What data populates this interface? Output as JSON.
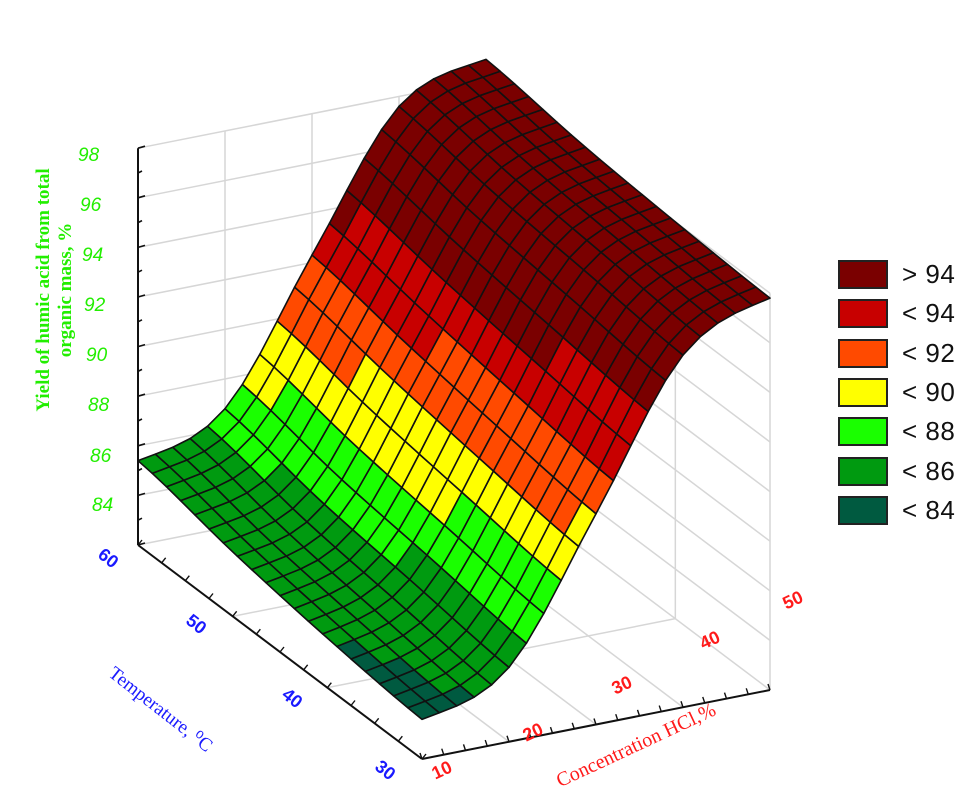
{
  "chart_data": {
    "type": "surface3d",
    "title": "",
    "x_axis": {
      "label": "Concentration HCl,%",
      "ticks": [
        10,
        20,
        30,
        40,
        50
      ],
      "range": [
        10,
        50
      ],
      "color": "#ff1a1a"
    },
    "y_axis": {
      "label": "Temperature, 0 C",
      "ticks": [
        30,
        40,
        50,
        60
      ],
      "range": [
        30,
        60
      ],
      "color": "#1a1aff"
    },
    "z_axis": {
      "label": "Yield of humic acid from total organic mass, %",
      "ticks": [
        84,
        86,
        88,
        90,
        92,
        94,
        96,
        98
      ],
      "range": [
        82,
        98
      ],
      "color": "#22ee00"
    },
    "grid_hcl": [
      10,
      20,
      30,
      40,
      50
    ],
    "grid_temp": [
      30,
      40,
      50,
      60
    ],
    "z_values_rows_by_temp": [
      [
        83.6,
        85.0,
        90.5,
        96.2,
        97.8
      ],
      [
        84.0,
        85.5,
        91.0,
        96.6,
        98.0
      ],
      [
        84.6,
        86.0,
        91.6,
        97.0,
        98.3
      ],
      [
        85.4,
        86.8,
        92.3,
        97.6,
        98.8
      ]
    ],
    "legend": {
      "position": "right",
      "items": [
        {
          "label": "> 94",
          "color": "#7a0000"
        },
        {
          "label": "< 94",
          "color": "#c80000"
        },
        {
          "label": "< 92",
          "color": "#ff4a00"
        },
        {
          "label": "< 90",
          "color": "#ffff00"
        },
        {
          "label": "< 88",
          "color": "#1aff00"
        },
        {
          "label": "< 86",
          "color": "#009a10"
        },
        {
          "label": "< 84",
          "color": "#005a40"
        }
      ]
    },
    "grid": true
  },
  "labels": {
    "z_title": "Yield of humic acid from total organic mass, %",
    "temp_title": "Temperature, ⁰C",
    "hcl_title": "Concentration HCl,%",
    "z_ticks": [
      "98",
      "96",
      "94",
      "92",
      "90",
      "88",
      "86",
      "84"
    ],
    "temp_ticks": [
      "60",
      "50",
      "40",
      "30"
    ],
    "hcl_ticks": [
      "10",
      "20",
      "30",
      "40",
      "50"
    ]
  }
}
